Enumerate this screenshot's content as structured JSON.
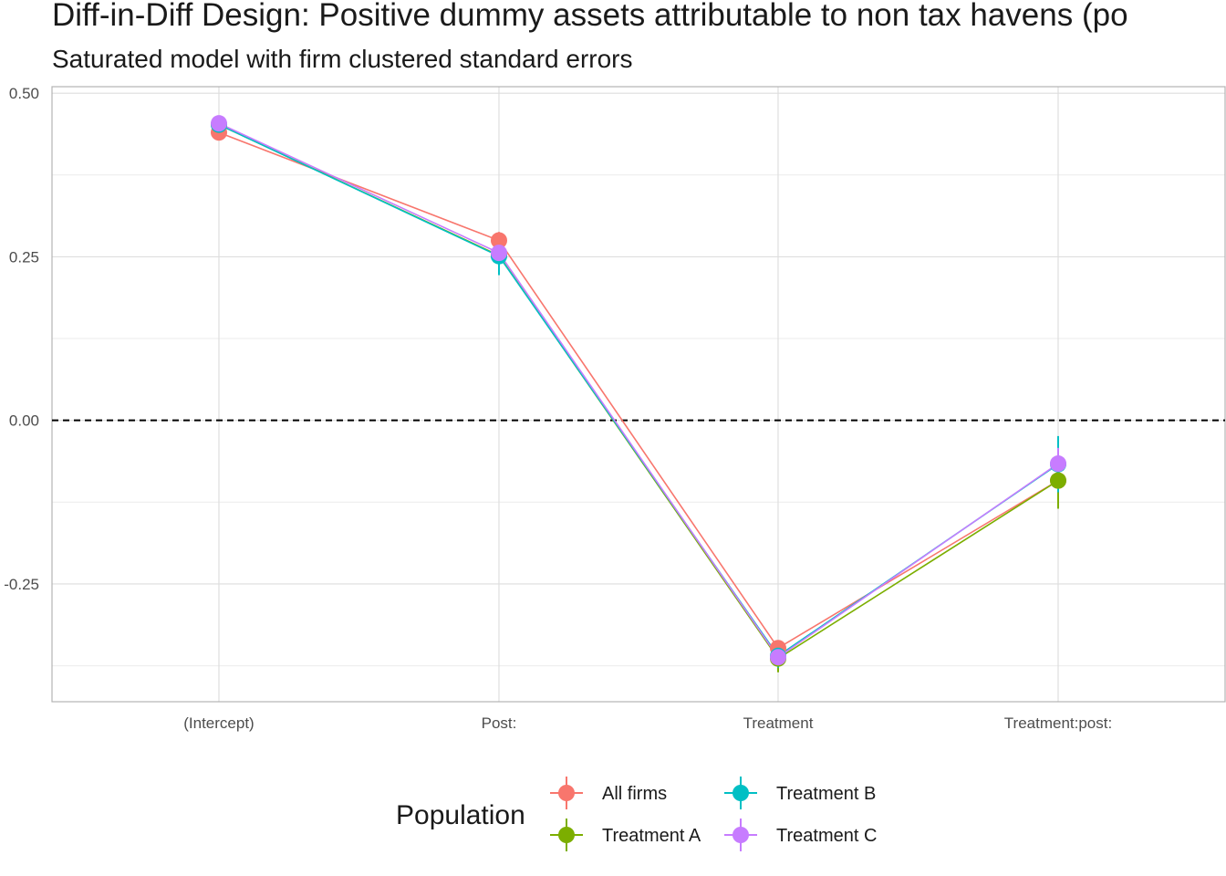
{
  "chart_data": {
    "type": "line",
    "title": "Diff-in-Diff Design: Positive dummy assets attributable to non tax havens (po",
    "subtitle": "Saturated model with firm clustered standard errors",
    "xlabel": "",
    "ylabel": "",
    "categories": [
      "(Intercept)",
      "Post:",
      "Treatment",
      "Treatment:post:"
    ],
    "ylim": [
      -0.43,
      0.51
    ],
    "yticks": [
      0.5,
      0.25,
      0.0,
      -0.25
    ],
    "ytick_labels": [
      "0.50",
      "0.25",
      "0.00",
      "-0.25"
    ],
    "reference_line": 0,
    "grid": true,
    "legend": {
      "title": "Population",
      "position": "bottom"
    },
    "series": [
      {
        "name": "All firms",
        "color": "#F8766D",
        "values": [
          0.44,
          0.275,
          -0.348,
          -0.092
        ],
        "lower": [
          0.432,
          0.262,
          -0.358,
          -0.11
        ],
        "upper": [
          0.448,
          0.288,
          -0.338,
          -0.074
        ]
      },
      {
        "name": "Treatment A",
        "color": "#7CAE00",
        "values": [
          0.452,
          0.252,
          -0.364,
          -0.092
        ],
        "lower": [
          0.44,
          0.228,
          -0.385,
          -0.135
        ],
        "upper": [
          0.464,
          0.276,
          -0.343,
          -0.049
        ]
      },
      {
        "name": "Treatment B",
        "color": "#00BFC4",
        "values": [
          0.452,
          0.251,
          -0.36,
          -0.067
        ],
        "lower": [
          0.44,
          0.222,
          -0.378,
          -0.11
        ],
        "upper": [
          0.464,
          0.28,
          -0.342,
          -0.024
        ]
      },
      {
        "name": "Treatment C",
        "color": "#C77CFF",
        "values": [
          0.454,
          0.256,
          -0.362,
          -0.066
        ],
        "lower": [
          0.444,
          0.24,
          -0.375,
          -0.09
        ],
        "upper": [
          0.464,
          0.272,
          -0.349,
          -0.042
        ]
      }
    ]
  }
}
